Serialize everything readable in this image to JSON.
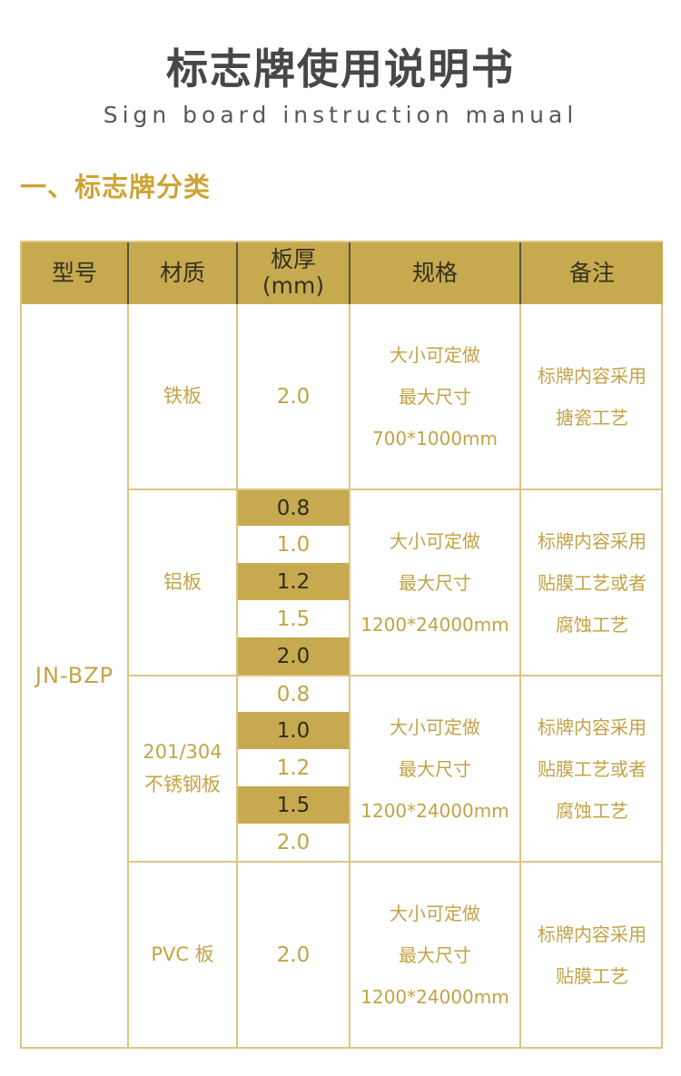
{
  "page": {
    "title": "标志牌使用说明书",
    "subtitle": "Sign board instruction manual",
    "section_heading": "一、标志牌分类"
  },
  "colors": {
    "gold_bg": "#c7aa4f",
    "gold_text": "#c3a346",
    "border_gold": "#dcc583",
    "header_text": "#33311f",
    "band_text": "#2e2c1b",
    "header_divider": "#57533f",
    "title_color": "#474747",
    "subtitle_color": "#585858",
    "heading_gold": "#cfa434"
  },
  "table": {
    "headers": {
      "model": "型号",
      "material": "材质",
      "thickness_l1": "板厚",
      "thickness_l2": "(mm)",
      "spec": "规格",
      "remark": "备注"
    },
    "model": "JN-BZP",
    "sections": [
      {
        "material": "铁板",
        "thickness": [
          {
            "value": "2.0",
            "highlight": false
          }
        ],
        "spec_lines": [
          "大小可定做",
          "最大尺寸",
          "700*1000mm"
        ],
        "remark_lines": [
          "标牌内容采用",
          "搪瓷工艺"
        ]
      },
      {
        "material": "铝板",
        "thickness": [
          {
            "value": "0.8",
            "highlight": true
          },
          {
            "value": "1.0",
            "highlight": false
          },
          {
            "value": "1.2",
            "highlight": true
          },
          {
            "value": "1.5",
            "highlight": false
          },
          {
            "value": "2.0",
            "highlight": true
          }
        ],
        "spec_lines": [
          "大小可定做",
          "最大尺寸",
          "1200*24000mm"
        ],
        "remark_lines": [
          "标牌内容采用",
          "贴膜工艺或者",
          "腐蚀工艺"
        ]
      },
      {
        "material": "201/304\n不锈钢板",
        "thickness": [
          {
            "value": "0.8",
            "highlight": false
          },
          {
            "value": "1.0",
            "highlight": true
          },
          {
            "value": "1.2",
            "highlight": false
          },
          {
            "value": "1.5",
            "highlight": true
          },
          {
            "value": "2.0",
            "highlight": false
          }
        ],
        "spec_lines": [
          "大小可定做",
          "最大尺寸",
          "1200*24000mm"
        ],
        "remark_lines": [
          "标牌内容采用",
          "贴膜工艺或者",
          "腐蚀工艺"
        ]
      },
      {
        "material": "PVC 板",
        "thickness": [
          {
            "value": "2.0",
            "highlight": false
          }
        ],
        "spec_lines": [
          "大小可定做",
          "最大尺寸",
          "1200*24000mm"
        ],
        "remark_lines": [
          "标牌内容采用",
          "贴膜工艺"
        ]
      }
    ]
  }
}
